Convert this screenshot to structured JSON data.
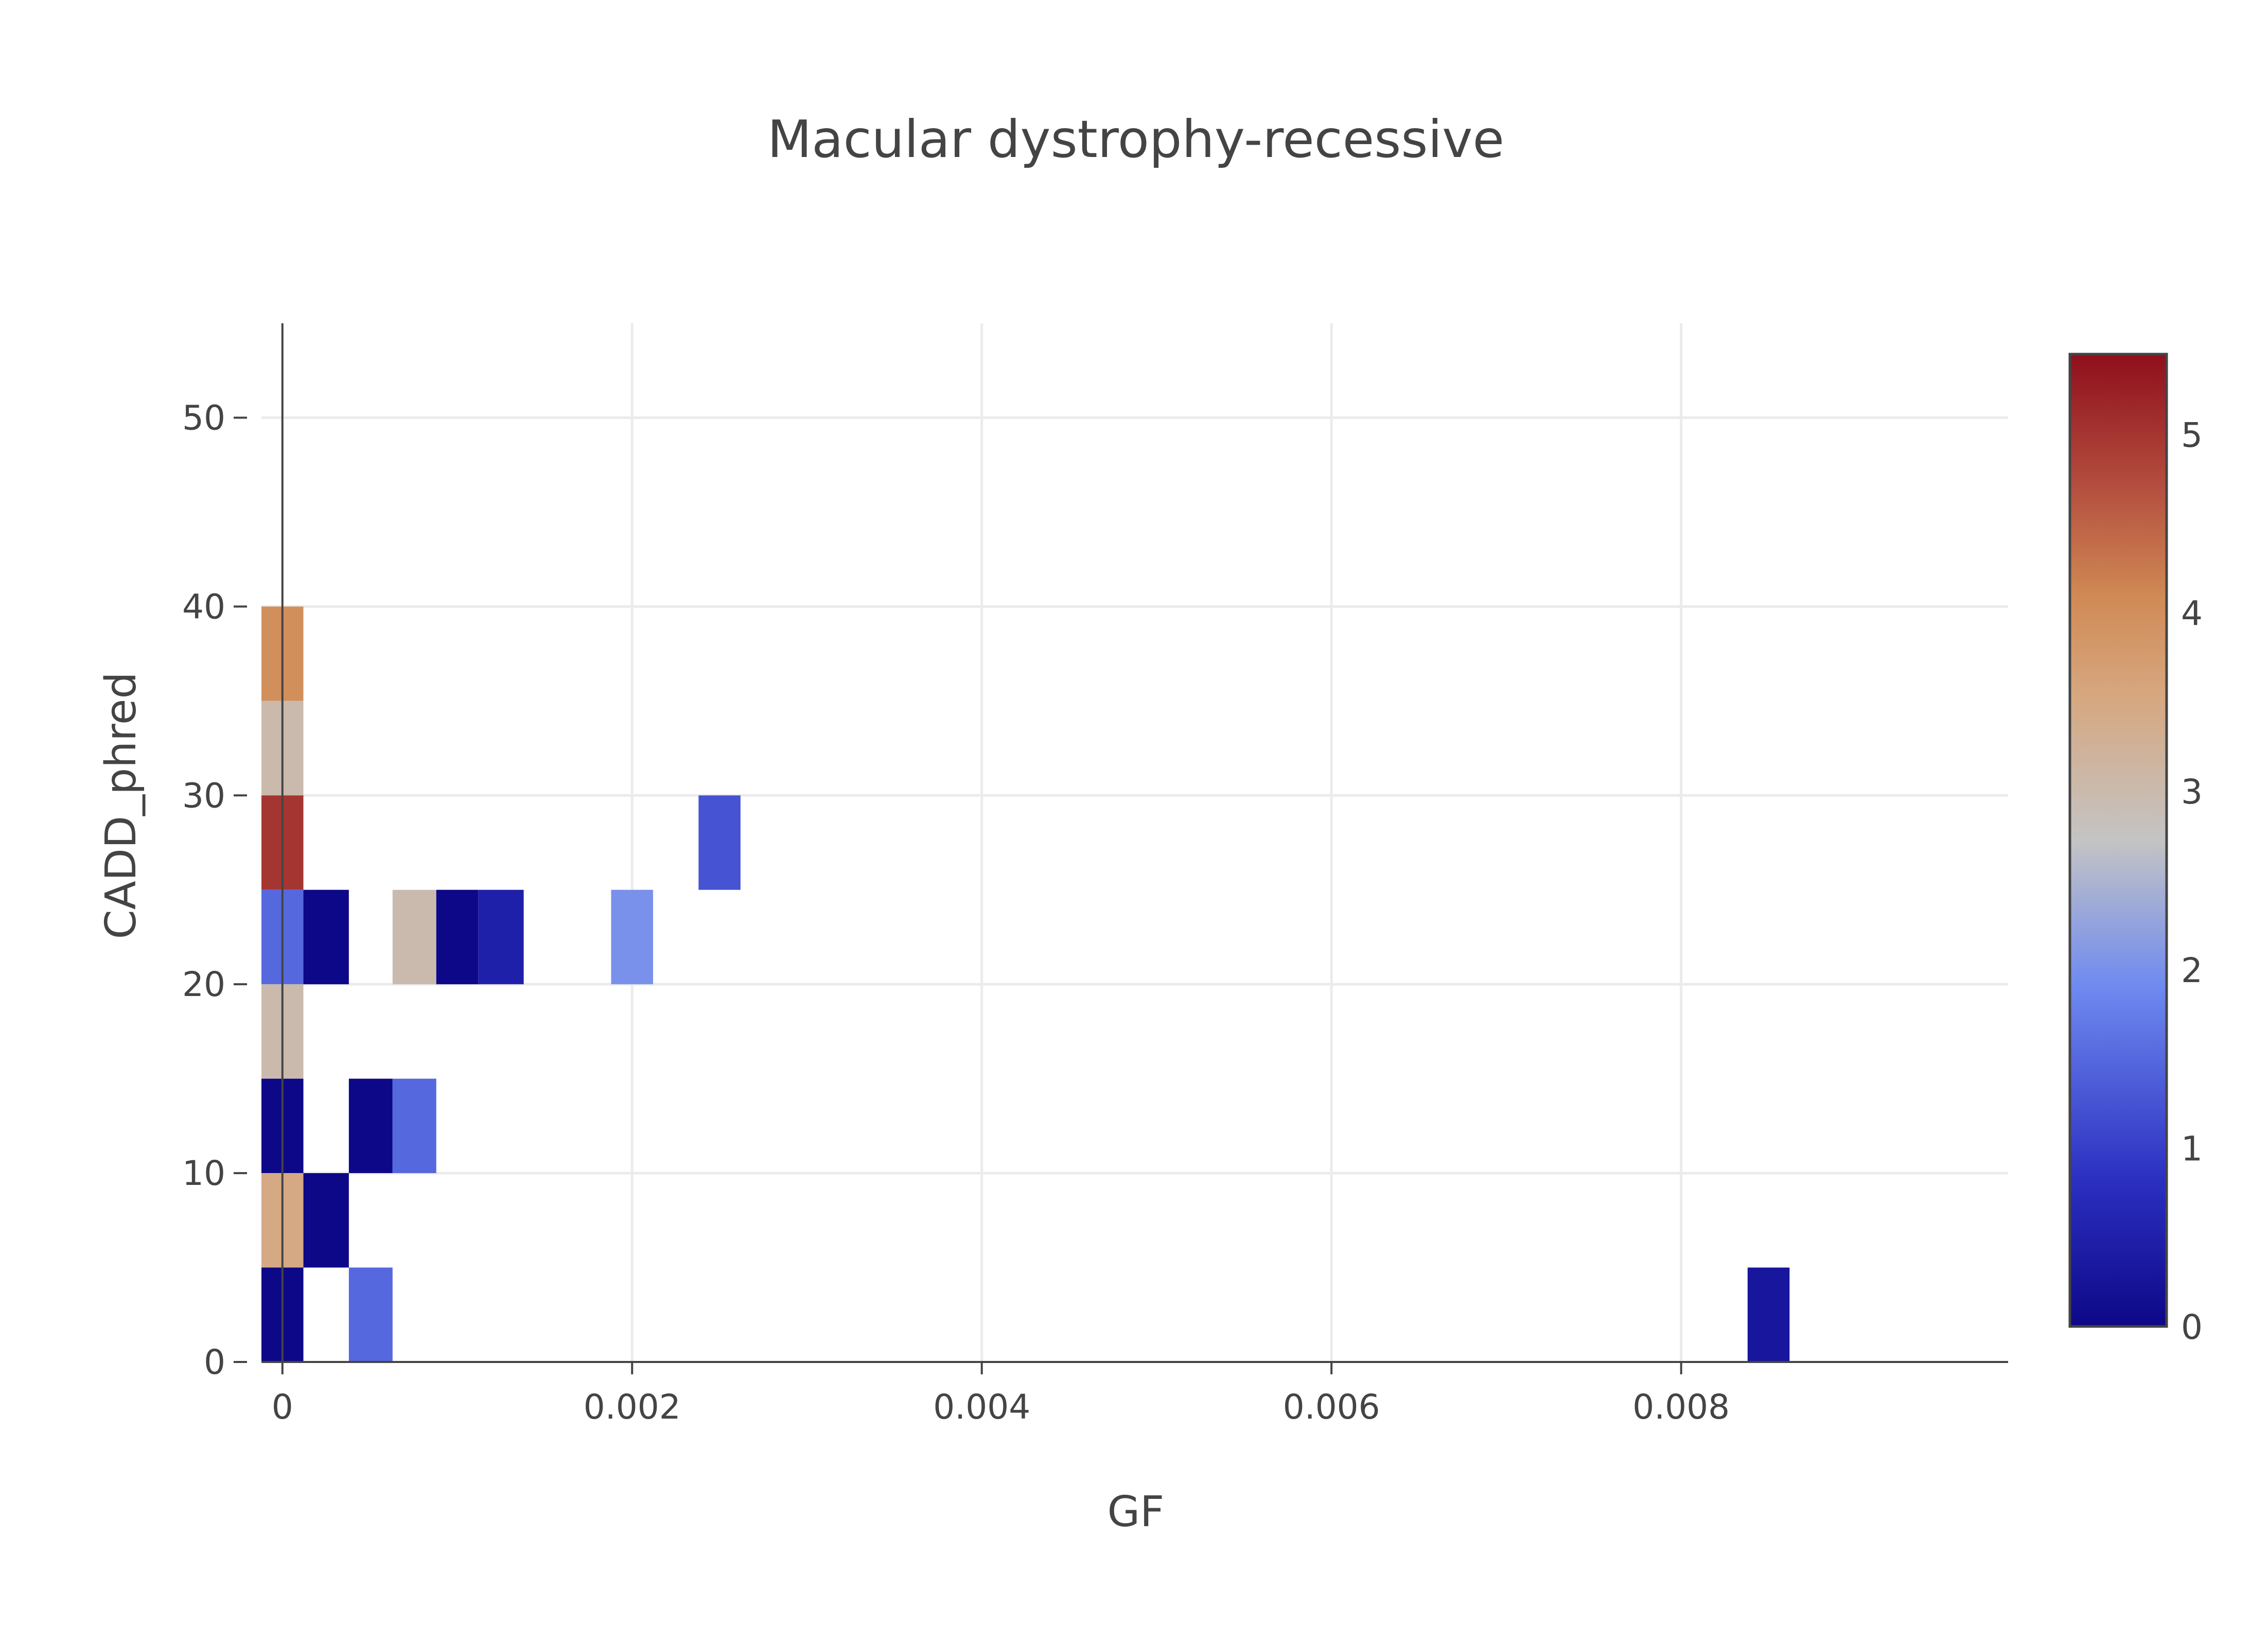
{
  "chart_data": {
    "type": "heatmap",
    "title": "Macular dystrophy-recessive",
    "xlabel": "GF",
    "ylabel": "CADD_phred",
    "xlim": [
      -0.00012,
      0.00987
    ],
    "ylim": [
      0,
      55
    ],
    "xticks": [
      {
        "value": 0,
        "label": "0"
      },
      {
        "value": 0.002,
        "label": "0.002"
      },
      {
        "value": 0.004,
        "label": "0.004"
      },
      {
        "value": 0.006,
        "label": "0.006"
      },
      {
        "value": 0.008,
        "label": "0.008"
      }
    ],
    "yticks": [
      {
        "value": 0,
        "label": "0"
      },
      {
        "value": 10,
        "label": "10"
      },
      {
        "value": 20,
        "label": "20"
      },
      {
        "value": 30,
        "label": "30"
      },
      {
        "value": 40,
        "label": "40"
      },
      {
        "value": 50,
        "label": "50"
      }
    ],
    "grid": true,
    "colorscale": {
      "stops": [
        [
          0.0,
          "#0d0887"
        ],
        [
          0.15,
          "#2b2fc0"
        ],
        [
          0.35,
          "#6f8af0"
        ],
        [
          0.5,
          "#c4c4c4"
        ],
        [
          0.65,
          "#d6a77f"
        ],
        [
          0.75,
          "#d08a55"
        ],
        [
          0.87,
          "#b24b3d"
        ],
        [
          1.0,
          "#8e0f1c"
        ]
      ],
      "cmin": 0,
      "cmax": 5.45,
      "ticks": [
        {
          "value": 0,
          "label": "0"
        },
        {
          "value": 1,
          "label": "1"
        },
        {
          "value": 2,
          "label": "2"
        },
        {
          "value": 3,
          "label": "3"
        },
        {
          "value": 4,
          "label": "4"
        },
        {
          "value": 5,
          "label": "5"
        }
      ]
    },
    "cells": [
      {
        "x0": -0.00012,
        "x1": 0.00012,
        "y0": 35,
        "y1": 40,
        "value": 4
      },
      {
        "x0": -0.00012,
        "x1": 0.00012,
        "y0": 30,
        "y1": 35,
        "value": 3
      },
      {
        "x0": -0.00012,
        "x1": 0.00012,
        "y0": 25,
        "y1": 30,
        "value": 5
      },
      {
        "x0": -0.00012,
        "x1": 0.00012,
        "y0": 20,
        "y1": 25,
        "value": 1.5
      },
      {
        "x0": 0.00012,
        "x1": 0.00038,
        "y0": 20,
        "y1": 25,
        "value": 0
      },
      {
        "x0": 0.00063,
        "x1": 0.00088,
        "y0": 20,
        "y1": 25,
        "value": 3
      },
      {
        "x0": 0.00088,
        "x1": 0.00112,
        "y0": 20,
        "y1": 25,
        "value": 0
      },
      {
        "x0": 0.00112,
        "x1": 0.00138,
        "y0": 20,
        "y1": 25,
        "value": 0.5
      },
      {
        "x0": 0.00188,
        "x1": 0.00212,
        "y0": 20,
        "y1": 25,
        "value": 2
      },
      {
        "x0": 0.00238,
        "x1": 0.00262,
        "y0": 25,
        "y1": 30,
        "value": 1.25
      },
      {
        "x0": -0.00012,
        "x1": 0.00012,
        "y0": 15,
        "y1": 20,
        "value": 3
      },
      {
        "x0": -0.00012,
        "x1": 0.00012,
        "y0": 10,
        "y1": 15,
        "value": 0
      },
      {
        "x0": 0.00038,
        "x1": 0.00063,
        "y0": 10,
        "y1": 15,
        "value": 0
      },
      {
        "x0": 0.00063,
        "x1": 0.00088,
        "y0": 10,
        "y1": 15,
        "value": 1.5
      },
      {
        "x0": -0.00012,
        "x1": 0.00012,
        "y0": 5,
        "y1": 10,
        "value": 3.5
      },
      {
        "x0": 0.00012,
        "x1": 0.00038,
        "y0": 5,
        "y1": 10,
        "value": 0
      },
      {
        "x0": -0.00012,
        "x1": 0.00012,
        "y0": 0,
        "y1": 5,
        "value": 0
      },
      {
        "x0": 0.00038,
        "x1": 0.00063,
        "y0": 0,
        "y1": 5,
        "value": 1.5
      },
      {
        "x0": 0.00838,
        "x1": 0.00862,
        "y0": 0,
        "y1": 5,
        "value": 0.3
      }
    ]
  }
}
